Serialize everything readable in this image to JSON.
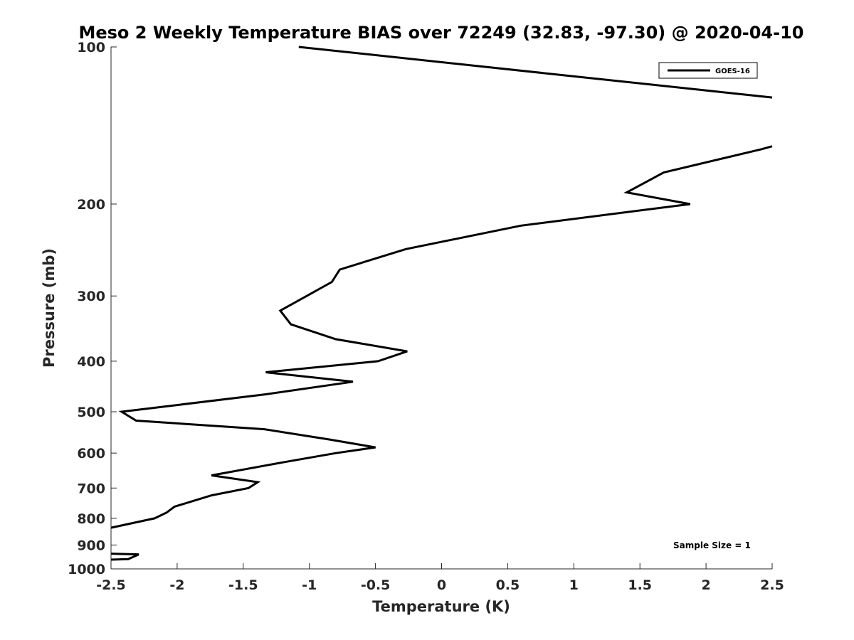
{
  "chart_data": {
    "type": "line",
    "title": "Meso 2 Weekly Temperature BIAS over 72249 (32.83, -97.30) @ 2020-04-10",
    "xlabel": "Temperature (K)",
    "ylabel": "Pressure (mb)",
    "xlim": [
      -2.5,
      2.5
    ],
    "ylim": [
      100,
      1000
    ],
    "y_scale": "log",
    "y_reversed": true,
    "x_ticks": [
      -2.5,
      -2,
      -1.5,
      -1,
      -0.5,
      0,
      0.5,
      1,
      1.5,
      2,
      2.5
    ],
    "x_tick_labels": [
      "-2.5",
      "-2",
      "-1.5",
      "-1",
      "-0.5",
      "0",
      "0.5",
      "1",
      "1.5",
      "2",
      "2.5"
    ],
    "y_ticks": [
      100,
      200,
      300,
      400,
      500,
      600,
      700,
      800,
      900,
      1000
    ],
    "y_tick_labels": [
      "100",
      "200",
      "300",
      "400",
      "500",
      "600",
      "700",
      "800",
      "900",
      "1000"
    ],
    "grid": false,
    "legend_position": "top-right",
    "series": [
      {
        "name": "GOES-16",
        "color": "#000000",
        "points": [
          {
            "x": -1.08,
            "p": 100
          },
          {
            "x": 2.5,
            "p": 125
          },
          {
            "x": null,
            "p": null
          },
          {
            "x": 2.5,
            "p": 155
          },
          {
            "x": 2.42,
            "p": 157
          },
          {
            "x": 1.68,
            "p": 174
          },
          {
            "x": 1.4,
            "p": 190
          },
          {
            "x": 1.88,
            "p": 200
          },
          {
            "x": 0.6,
            "p": 220
          },
          {
            "x": -0.27,
            "p": 244
          },
          {
            "x": -0.77,
            "p": 267
          },
          {
            "x": -0.83,
            "p": 282
          },
          {
            "x": -1.02,
            "p": 300
          },
          {
            "x": -1.22,
            "p": 320
          },
          {
            "x": -1.14,
            "p": 340
          },
          {
            "x": -0.8,
            "p": 363
          },
          {
            "x": -0.26,
            "p": 383
          },
          {
            "x": -0.48,
            "p": 400
          },
          {
            "x": -1.33,
            "p": 420
          },
          {
            "x": -0.67,
            "p": 438
          },
          {
            "x": -1.33,
            "p": 463
          },
          {
            "x": -2.42,
            "p": 500
          },
          {
            "x": -2.31,
            "p": 520
          },
          {
            "x": -1.34,
            "p": 540
          },
          {
            "x": -0.85,
            "p": 565
          },
          {
            "x": -0.5,
            "p": 585
          },
          {
            "x": -0.8,
            "p": 600
          },
          {
            "x": -1.2,
            "p": 625
          },
          {
            "x": -1.74,
            "p": 662
          },
          {
            "x": -1.39,
            "p": 682
          },
          {
            "x": -1.46,
            "p": 700
          },
          {
            "x": -1.74,
            "p": 723
          },
          {
            "x": -2.02,
            "p": 760
          },
          {
            "x": -2.08,
            "p": 780
          },
          {
            "x": -2.17,
            "p": 800
          },
          {
            "x": -2.5,
            "p": 834
          },
          {
            "x": null,
            "p": null
          },
          {
            "x": -2.5,
            "p": 935
          },
          {
            "x": -2.29,
            "p": 938
          },
          {
            "x": -2.37,
            "p": 958
          },
          {
            "x": -2.5,
            "p": 960
          }
        ]
      }
    ],
    "annotations": [
      {
        "text": "Sample Size = 1",
        "position": "bottom-right"
      }
    ]
  }
}
